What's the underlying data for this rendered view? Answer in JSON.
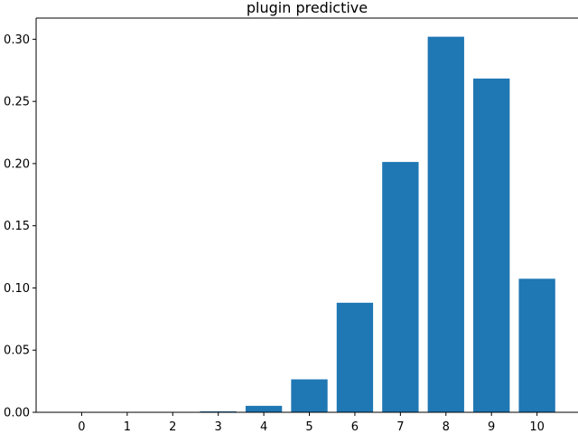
{
  "chart_data": {
    "type": "bar",
    "title": "plugin predictive",
    "xlabel": "",
    "ylabel": "",
    "categories": [
      "0",
      "1",
      "2",
      "3",
      "4",
      "5",
      "6",
      "7",
      "8",
      "9",
      "10"
    ],
    "x": [
      0,
      1,
      2,
      3,
      4,
      5,
      6,
      7,
      8,
      9,
      10
    ],
    "values": [
      0.0,
      0.0,
      0.0001,
      0.0008,
      0.0052,
      0.0265,
      0.0881,
      0.2013,
      0.302,
      0.2684,
      0.1074
    ],
    "xticks": [
      "0",
      "1",
      "2",
      "3",
      "4",
      "5",
      "6",
      "7",
      "8",
      "9",
      "10"
    ],
    "yticks": [
      "0.00",
      "0.05",
      "0.10",
      "0.15",
      "0.20",
      "0.25",
      "0.30"
    ],
    "xlim": [
      -1.0,
      10.9
    ],
    "ylim": [
      0,
      0.317
    ],
    "bar_color": "#1f77b4",
    "grid": false,
    "legend": "none"
  }
}
